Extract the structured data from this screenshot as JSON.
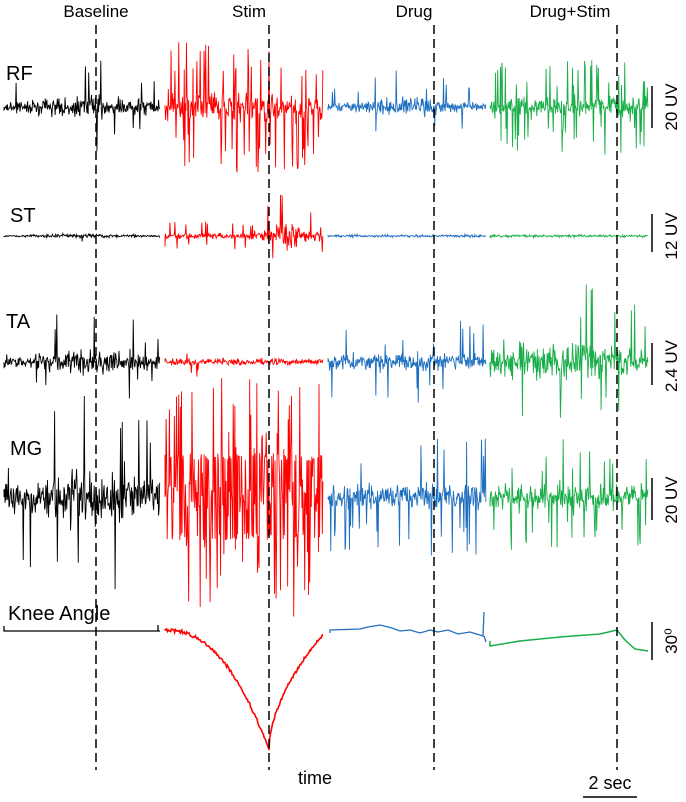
{
  "conditions": [
    {
      "label": "Baseline",
      "color": "#000000"
    },
    {
      "label": "Stim",
      "color": "#ff0000"
    },
    {
      "label": "Drug",
      "color": "#1f6fc0"
    },
    {
      "label": "Drug+Stim",
      "color": "#1aae48"
    }
  ],
  "rows": [
    {
      "label": "RF",
      "scale": "20 UV"
    },
    {
      "label": "ST",
      "scale": "12 UV"
    },
    {
      "label": "TA",
      "scale": "2.4 UV"
    },
    {
      "label": "MG",
      "scale": "20 UV"
    },
    {
      "label": "Knee Angle",
      "scale": "30⁰"
    }
  ],
  "x_axis_label": "time",
  "time_scale_label": "2 sec"
}
